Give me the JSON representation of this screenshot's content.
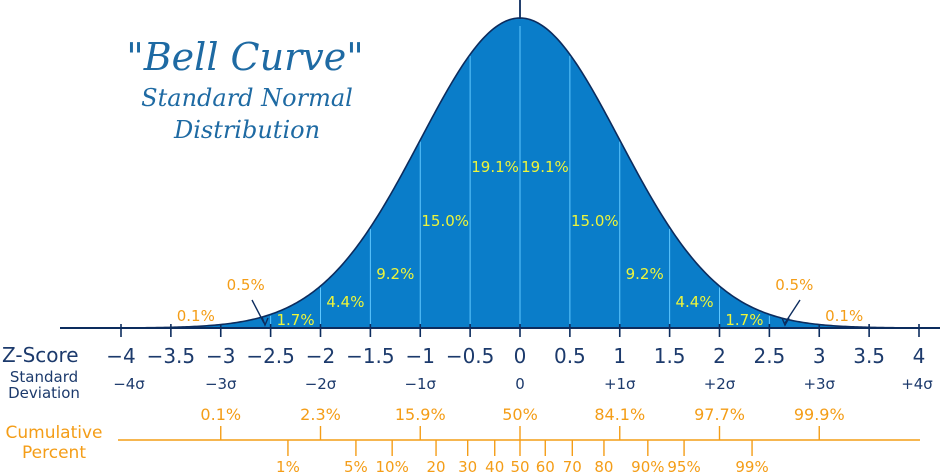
{
  "title": "\"Bell Curve\"",
  "subtitle_line1": "Standard Normal",
  "subtitle_line2": "Distribution",
  "row_labels": {
    "zscore": "Z-Score",
    "std1": "Standard",
    "std2": "Deviation",
    "cum1": "Cumulative",
    "cum2": "Percent"
  },
  "zscores": [
    {
      "z": -4,
      "label": "−4"
    },
    {
      "z": -3.5,
      "label": "−3.5"
    },
    {
      "z": -3,
      "label": "−3"
    },
    {
      "z": -2.5,
      "label": "−2.5"
    },
    {
      "z": -2,
      "label": "−2"
    },
    {
      "z": -1.5,
      "label": "−1.5"
    },
    {
      "z": -1,
      "label": "−1"
    },
    {
      "z": -0.5,
      "label": "−0.5"
    },
    {
      "z": 0,
      "label": "0"
    },
    {
      "z": 0.5,
      "label": "0.5"
    },
    {
      "z": 1,
      "label": "1"
    },
    {
      "z": 1.5,
      "label": "1.5"
    },
    {
      "z": 2,
      "label": "2"
    },
    {
      "z": 2.5,
      "label": "2.5"
    },
    {
      "z": 3,
      "label": "3"
    },
    {
      "z": 3.5,
      "label": "3.5"
    },
    {
      "z": 4,
      "label": "4"
    }
  ],
  "sigmas": [
    {
      "z": -4,
      "label": "−4σ"
    },
    {
      "z": -3,
      "label": "−3σ"
    },
    {
      "z": -2,
      "label": "−2σ"
    },
    {
      "z": -1,
      "label": "−1σ"
    },
    {
      "z": 0,
      "label": "0"
    },
    {
      "z": 1,
      "label": "+1σ"
    },
    {
      "z": 2,
      "label": "+2σ"
    },
    {
      "z": 3,
      "label": "+3σ"
    },
    {
      "z": 4,
      "label": "+4σ"
    }
  ],
  "region_labels_inside": [
    {
      "z": -0.25,
      "level": 0.1915,
      "label": "19.1%"
    },
    {
      "z": 0.25,
      "level": 0.1915,
      "label": "19.1%"
    },
    {
      "z": -0.75,
      "level": 0.15,
      "label": "15.0%"
    },
    {
      "z": 0.75,
      "level": 0.15,
      "label": "15.0%"
    },
    {
      "z": -1.25,
      "level": 0.092,
      "label": "9.2%"
    },
    {
      "z": 1.25,
      "level": 0.092,
      "label": "9.2%"
    },
    {
      "z": -1.75,
      "level": 0.044,
      "label": "4.4%"
    },
    {
      "z": 1.75,
      "level": 0.044,
      "label": "4.4%"
    },
    {
      "z": -2.25,
      "level": 0.017,
      "label": "1.7%"
    },
    {
      "z": 2.25,
      "level": 0.017,
      "label": "1.7%"
    }
  ],
  "region_labels_outside": [
    {
      "z": -3.25,
      "level": 0.001,
      "label": "0.1%"
    },
    {
      "z": 3.25,
      "level": 0.001,
      "label": "0.1%"
    },
    {
      "z": -2.75,
      "level": 0.005,
      "label": "0.5%"
    },
    {
      "z": 2.75,
      "level": 0.005,
      "label": "0.5%"
    }
  ],
  "cumulative_major": [
    {
      "z": -3,
      "label": "0.1%"
    },
    {
      "z": -2,
      "label": "2.3%"
    },
    {
      "z": -1,
      "label": "15.9%"
    },
    {
      "z": 0,
      "label": "50%"
    },
    {
      "z": 1,
      "label": "84.1%"
    },
    {
      "z": 2,
      "label": "97.7%"
    },
    {
      "z": 3,
      "label": "99.9%"
    }
  ],
  "cumulative_minor": [
    {
      "p": 0.01,
      "label": "1%"
    },
    {
      "p": 0.05,
      "label": "5%"
    },
    {
      "p": 0.1,
      "label": "10%"
    },
    {
      "p": 0.2,
      "label": "20"
    },
    {
      "p": 0.3,
      "label": "30"
    },
    {
      "p": 0.4,
      "label": "40"
    },
    {
      "p": 0.5,
      "label": "50"
    },
    {
      "p": 0.6,
      "label": "60"
    },
    {
      "p": 0.7,
      "label": "70"
    },
    {
      "p": 0.8,
      "label": "80"
    },
    {
      "p": 0.9,
      "label": "90%"
    },
    {
      "p": 0.95,
      "label": "95%"
    },
    {
      "p": 0.99,
      "label": "99%"
    }
  ],
  "colors": {
    "fill": "#0a7dc9",
    "outline": "#0c2c5e",
    "divider": "#5fc8ff",
    "inside_text": "#eef53a",
    "outside_text": "#f49d17",
    "axis_text": "#1c3a6c",
    "title": "#1e6aa3",
    "cumulative": "#f49d17"
  }
}
